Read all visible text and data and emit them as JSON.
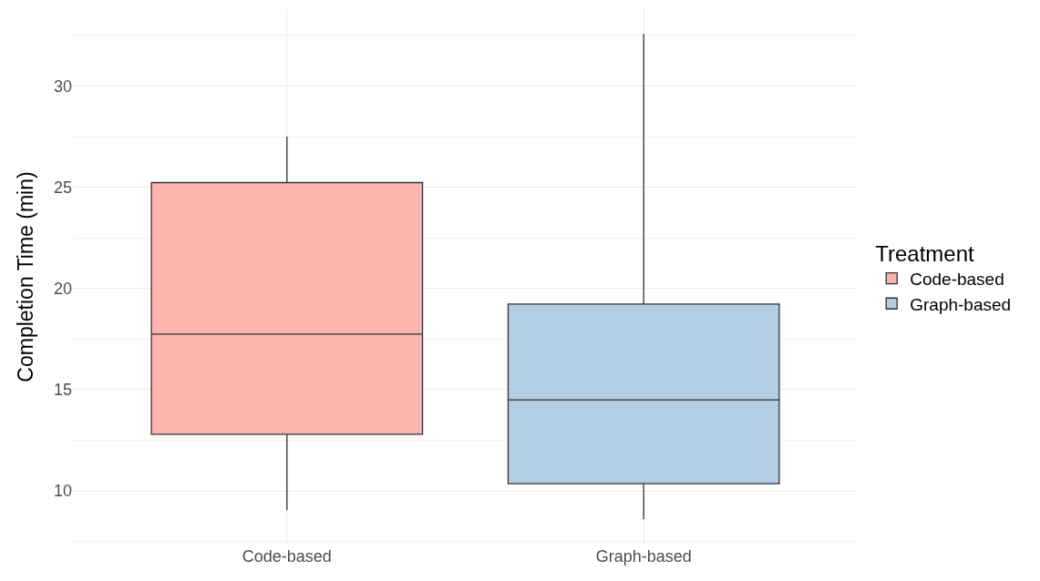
{
  "chart_data": {
    "type": "box",
    "ylabel": "Completion Time (min)",
    "legend_title": "Treatment",
    "categories": [
      "Code-based",
      "Graph-based"
    ],
    "series": [
      {
        "name": "Code-based",
        "color": "#fbb4ae",
        "boxes": [
          {
            "low": 9.05,
            "q1": 12.8,
            "median": 17.75,
            "q3": 25.23,
            "high": 27.5
          },
          null
        ]
      },
      {
        "name": "Graph-based",
        "color": "#b3cde3",
        "boxes": [
          null,
          {
            "low": 8.6,
            "q1": 10.36,
            "median": 14.5,
            "q3": 19.23,
            "high": 32.57
          }
        ]
      }
    ],
    "ylim": [
      7.35,
      33.8
    ],
    "yticks": [
      10,
      15,
      20,
      25,
      30
    ],
    "grid": true,
    "legend": "right"
  }
}
